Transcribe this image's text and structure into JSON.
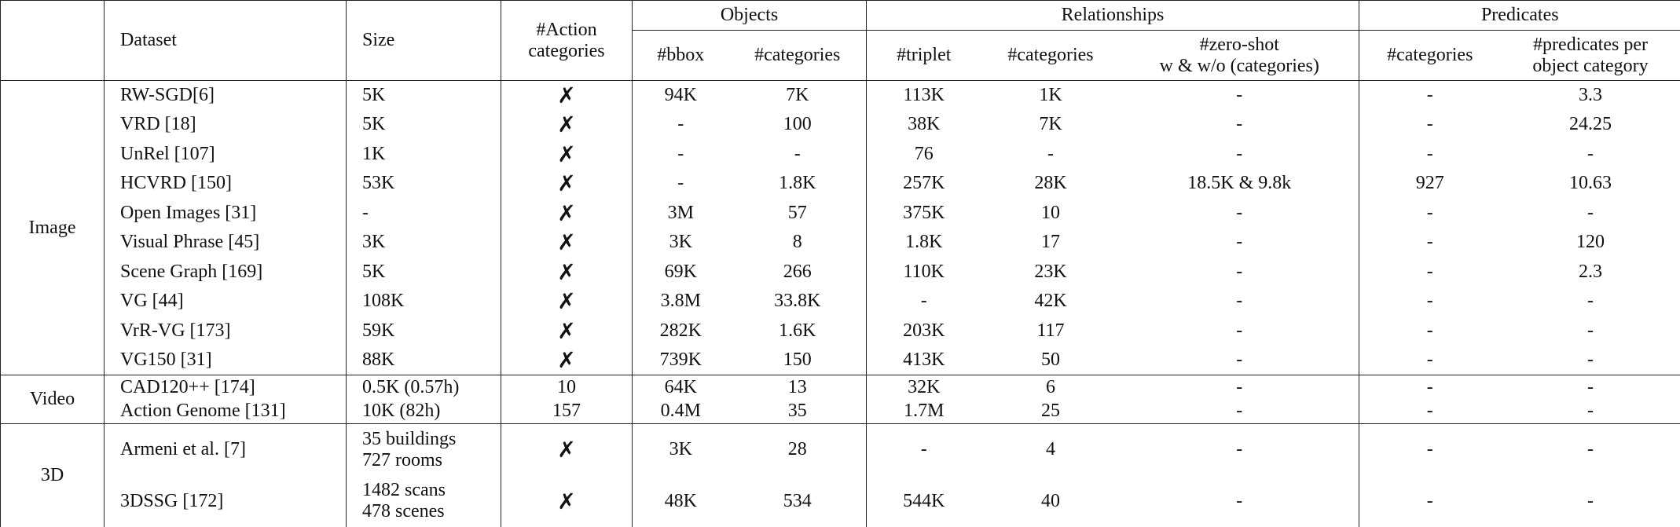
{
  "header": {
    "dataset": "Dataset",
    "size": "Size",
    "action": [
      "#Action",
      "categories"
    ],
    "groups": [
      {
        "label": "Objects",
        "columns": [
          "#bbox",
          "#categories"
        ]
      },
      {
        "label": "Relationships",
        "columns": [
          "#triplet",
          "#categories",
          [
            "#zero-shot",
            "w & w/o (categories)"
          ]
        ]
      },
      {
        "label": "Predicates",
        "columns": [
          "#categories",
          [
            "#predicates per",
            "object category"
          ]
        ]
      }
    ]
  },
  "sections": [
    {
      "label": "Image",
      "rows": [
        [
          "RW-SGD[6]",
          "5K",
          "✗",
          "94K",
          "7K",
          "113K",
          "1K",
          "-",
          "-",
          "3.3"
        ],
        [
          "VRD [18]",
          "5K",
          "✗",
          "-",
          "100",
          "38K",
          "7K",
          "-",
          "-",
          "24.25"
        ],
        [
          "UnRel [107]",
          "1K",
          "✗",
          "-",
          "-",
          "76",
          "-",
          "-",
          "-",
          "-"
        ],
        [
          "HCVRD [150]",
          "53K",
          "✗",
          "-",
          "1.8K",
          "257K",
          "28K",
          "18.5K & 9.8k",
          "927",
          "10.63"
        ],
        [
          "Open Images [31]",
          "-",
          "✗",
          "3M",
          "57",
          "375K",
          "10",
          "-",
          "-",
          "-"
        ],
        [
          "Visual Phrase [45]",
          "3K",
          "✗",
          "3K",
          "8",
          "1.8K",
          "17",
          "-",
          "-",
          "120"
        ],
        [
          "Scene Graph [169]",
          "5K",
          "✗",
          "69K",
          "266",
          "110K",
          "23K",
          "-",
          "-",
          "2.3"
        ],
        [
          "VG [44]",
          "108K",
          "✗",
          "3.8M",
          "33.8K",
          "-",
          "42K",
          "-",
          "-",
          "-"
        ],
        [
          "VrR-VG [173]",
          "59K",
          "✗",
          "282K",
          "1.6K",
          "203K",
          "117",
          "-",
          "-",
          "-"
        ],
        [
          "VG150 [31]",
          "88K",
          "✗",
          "739K",
          "150",
          "413K",
          "50",
          "-",
          "-",
          "-"
        ]
      ]
    },
    {
      "label": "Video",
      "rows": [
        [
          "CAD120++ [174]",
          "0.5K (0.57h)",
          "10",
          "64K",
          "13",
          "32K",
          "6",
          "-",
          "-",
          "-"
        ],
        [
          "Action Genome [131]",
          "10K (82h)",
          "157",
          "0.4M",
          "35",
          "1.7M",
          "25",
          "-",
          "-",
          "-"
        ]
      ]
    },
    {
      "label": "3D",
      "rows": [
        [
          "Armeni et al. [7]",
          [
            "35 buildings",
            "727 rooms"
          ],
          "✗",
          "3K",
          "28",
          "-",
          "4",
          "-",
          "-",
          "-"
        ],
        [
          "3DSSG [172]",
          [
            "1482 scans",
            "478 scenes"
          ],
          "✗",
          "48K",
          "534",
          "544K",
          "40",
          "-",
          "-",
          "-"
        ]
      ]
    }
  ]
}
